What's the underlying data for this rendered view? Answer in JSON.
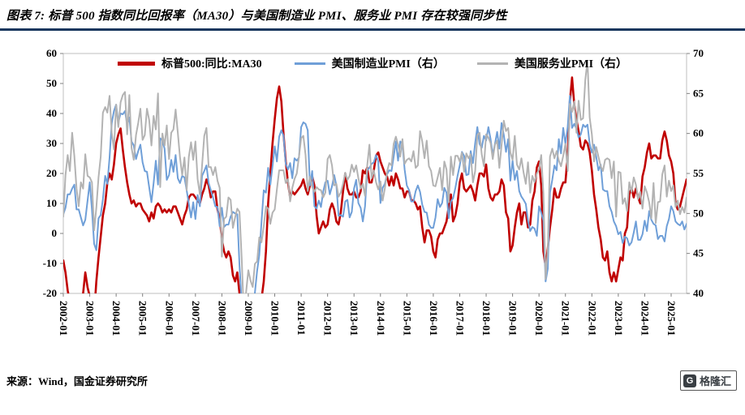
{
  "header": {
    "title": "图表 7: 标普 500 指数同比回报率（MA30）与美国制造业 PMI、服务业 PMI 存在较强同步性"
  },
  "footer": {
    "source": "来源：Wind，国金证券研究所",
    "logo_letter": "G",
    "logo_text": "格隆汇"
  },
  "chart_data": {
    "type": "line",
    "title": "标普 500 指数同比回报率（MA30）与美国制造业 PMI、服务业 PMI 存在较强同步性",
    "x_start": "2002-01",
    "x_frequency": "monthly",
    "grid": false,
    "legend_position": "top-center",
    "x_ticks": [
      "2002-01",
      "2003-01",
      "2004-01",
      "2005-01",
      "2006-01",
      "2007-01",
      "2008-01",
      "2009-01",
      "2010-01",
      "2011-01",
      "2012-01",
      "2013-01",
      "2014-01",
      "2015-01",
      "2016-01",
      "2017-01",
      "2018-01",
      "2019-01",
      "2020-01",
      "2021-01",
      "2022-01",
      "2023-01",
      "2024-01",
      "2025-01"
    ],
    "left_axis": {
      "min": -20,
      "max": 60,
      "step": 10,
      "ticks": [
        60,
        50,
        40,
        30,
        20,
        10,
        0,
        -10,
        -20
      ]
    },
    "right_axis": {
      "min": 40,
      "max": 70,
      "step": 5,
      "ticks": [
        70,
        65,
        60,
        55,
        50,
        45,
        40
      ]
    },
    "legend": [
      {
        "label": "标普500:同比:MA30",
        "color": "#c00000"
      },
      {
        "label": "美国制造业PMI（右）",
        "color": "#6f9fd8"
      },
      {
        "label": "美国服务业PMI（右）",
        "color": "#b3b3b3"
      }
    ],
    "series": [
      {
        "name": "标普500:同比:MA30",
        "axis": "left",
        "color": "#c00000",
        "width": 2.6,
        "values": [
          -9,
          -13,
          -19,
          -23,
          -26,
          -27,
          -25,
          -27,
          -24,
          -20,
          -13,
          -18,
          -21,
          -25,
          -27,
          -16,
          -8,
          -1,
          6,
          10,
          17,
          20,
          18,
          23,
          30,
          33,
          35,
          28,
          22,
          17,
          13,
          10,
          11,
          9,
          10,
          10,
          8,
          7,
          6,
          4,
          7,
          5,
          9,
          10,
          9,
          7,
          8,
          7,
          8,
          7,
          9,
          9,
          7,
          5,
          3,
          6,
          8,
          12,
          13,
          13,
          12,
          11,
          10,
          13,
          15,
          18,
          16,
          12,
          14,
          14,
          8,
          5,
          -2,
          -6,
          -8,
          -6,
          -8,
          -14,
          -16,
          -13,
          -20,
          -30,
          -36,
          -38,
          -38,
          -41,
          -40,
          -35,
          -32,
          -27,
          -22,
          -16,
          -6,
          10,
          20,
          30,
          38,
          45,
          49,
          44,
          33,
          24,
          17,
          12,
          14,
          13,
          14,
          15,
          16,
          18,
          15,
          13,
          16,
          19,
          16,
          6,
          0,
          2,
          4,
          2,
          3,
          8,
          10,
          8,
          4,
          3,
          7,
          14,
          20,
          15,
          13,
          13,
          14,
          12,
          12,
          14,
          21,
          20,
          22,
          17,
          17,
          21,
          26,
          27,
          24,
          22,
          20,
          19,
          16,
          19,
          16,
          20,
          18,
          15,
          15,
          12,
          14,
          14,
          11,
          11,
          10,
          8,
          9,
          2,
          -3,
          1,
          1,
          -1,
          -6,
          -8,
          -2,
          0,
          0,
          2,
          4,
          9,
          13,
          4,
          6,
          10,
          17,
          20,
          15,
          14,
          15,
          16,
          14,
          11,
          16,
          20,
          20,
          19,
          23,
          15,
          12,
          11,
          13,
          13,
          14,
          18,
          16,
          7,
          5,
          -6,
          -4,
          2,
          7,
          10,
          3,
          7,
          7,
          2,
          3,
          11,
          14,
          22,
          24,
          16,
          -6,
          -11,
          -5,
          2,
          8,
          15,
          12,
          12,
          15,
          17,
          17,
          26,
          44,
          52,
          43,
          38,
          34,
          29,
          28,
          31,
          30,
          27,
          21,
          13,
          8,
          2,
          -2,
          -8,
          -9,
          -6,
          -13,
          -16,
          -13,
          -16,
          -12,
          -8,
          -9,
          0,
          2,
          13,
          15,
          12,
          15,
          12,
          10,
          19,
          22,
          27,
          30,
          25,
          26,
          26,
          25,
          25,
          31,
          34,
          31,
          26,
          24,
          20,
          10,
          8,
          9,
          12,
          15,
          18
        ]
      },
      {
        "name": "美国制造业PMI（右）",
        "axis": "right",
        "color": "#6f9fd8",
        "width": 2,
        "values": [
          49.9,
          50.7,
          52.4,
          52.4,
          53.1,
          53.6,
          50.5,
          50.5,
          49.5,
          48.5,
          49.2,
          51.6,
          53.9,
          50.5,
          46.2,
          45.4,
          49.4,
          49.8,
          51.8,
          54.7,
          53.7,
          57.0,
          61.3,
          62.8,
          63.6,
          61.4,
          62.5,
          62.4,
          62.8,
          61.1,
          62.0,
          59.0,
          58.5,
          56.8,
          57.8,
          58.6,
          56.4,
          55.3,
          55.2,
          53.3,
          51.4,
          53.8,
          56.6,
          53.6,
          59.4,
          59.1,
          58.1,
          54.2,
          54.8,
          56.7,
          55.2,
          57.3,
          54.4,
          53.8,
          54.7,
          54.5,
          52.9,
          51.2,
          49.5,
          51.4,
          49.3,
          52.3,
          50.9,
          54.7,
          55.3,
          56.0,
          53.8,
          52.9,
          52.0,
          50.9,
          50.8,
          48.4,
          50.7,
          48.3,
          48.6,
          48.6,
          49.6,
          50.2,
          50.0,
          49.9,
          43.5,
          38.9,
          36.2,
          32.9,
          35.6,
          35.8,
          36.3,
          40.1,
          42.8,
          44.8,
          48.9,
          52.9,
          52.6,
          55.7,
          53.6,
          55.9,
          58.4,
          56.5,
          59.6,
          60.4,
          59.7,
          56.2,
          55.5,
          56.3,
          54.4,
          56.9,
          56.6,
          57.0,
          60.8,
          61.4,
          61.2,
          60.4,
          53.5,
          55.3,
          50.9,
          50.6,
          51.6,
          50.8,
          52.7,
          53.9,
          54.1,
          52.4,
          53.4,
          54.8,
          53.5,
          49.7,
          49.8,
          49.6,
          51.5,
          51.7,
          49.5,
          50.2,
          53.1,
          54.2,
          51.3,
          50.7,
          49.0,
          50.9,
          55.4,
          55.7,
          56.2,
          56.4,
          57.3,
          56.5,
          51.3,
          53.2,
          53.7,
          54.9,
          55.4,
          55.3,
          57.1,
          59.0,
          56.6,
          59.0,
          58.7,
          55.5,
          53.5,
          52.9,
          51.5,
          51.5,
          52.8,
          53.5,
          52.7,
          51.1,
          50.2,
          50.1,
          48.6,
          48.2,
          48.2,
          49.5,
          51.8,
          50.8,
          51.3,
          53.2,
          52.6,
          49.4,
          51.5,
          51.9,
          53.2,
          54.7,
          56.0,
          57.7,
          57.2,
          54.8,
          54.9,
          57.8,
          56.3,
          58.8,
          60.8,
          58.7,
          58.2,
          59.7,
          59.1,
          60.8,
          59.3,
          57.3,
          58.7,
          60.2,
          58.1,
          61.3,
          59.8,
          57.7,
          59.3,
          54.1,
          56.6,
          54.2,
          55.3,
          52.8,
          52.1,
          51.7,
          51.2,
          49.1,
          47.8,
          48.3,
          48.1,
          47.2,
          50.9,
          50.1,
          49.1,
          41.5,
          43.1,
          52.6,
          54.2,
          56.0,
          55.4,
          59.3,
          57.5,
          60.7,
          58.7,
          60.8,
          64.7,
          60.7,
          61.2,
          60.6,
          59.5,
          59.9,
          61.1,
          60.8,
          61.1,
          58.7,
          57.6,
          58.6,
          57.1,
          55.4,
          56.1,
          53.0,
          52.8,
          52.8,
          50.9,
          50.2,
          49.0,
          48.4,
          47.4,
          47.7,
          46.3,
          47.1,
          46.9,
          46.0,
          46.4,
          47.6,
          49.0,
          46.7,
          46.7,
          47.4,
          49.1,
          47.8,
          50.3,
          49.2,
          48.7,
          48.5,
          46.8,
          47.2,
          47.2,
          46.5,
          48.4,
          49.3,
          50.9,
          50.3,
          49.0,
          48.7,
          48.5,
          49.0,
          48.0,
          48.7
        ]
      },
      {
        "name": "美国服务业PMI（右）",
        "axis": "right",
        "color": "#b3b3b3",
        "width": 2,
        "values": [
          49.6,
          54.8,
          57.3,
          55.3,
          60.1,
          57.2,
          53.1,
          50.9,
          53.9,
          53.1,
          57.4,
          54.7,
          54.5,
          53.9,
          47.9,
          50.7,
          54.5,
          57.1,
          62.6,
          63.3,
          62.6,
          64.7,
          60.1,
          58.0,
          63.6,
          60.8,
          63.9,
          64.8,
          65.2,
          59.9,
          64.8,
          58.2,
          56.7,
          59.8,
          61.3,
          63.1,
          59.2,
          59.8,
          63.1,
          61.7,
          58.5,
          62.2,
          60.5,
          65.0,
          53.3,
          60.0,
          58.5,
          61.0,
          56.8,
          60.1,
          60.5,
          63.0,
          60.1,
          57.0,
          54.8,
          57.0,
          52.9,
          57.1,
          58.9,
          56.7,
          59.0,
          54.3,
          52.4,
          56.0,
          59.7,
          60.7,
          55.8,
          55.8,
          54.8,
          55.8,
          54.1,
          53.2,
          44.6,
          49.3,
          49.6,
          52.0,
          51.7,
          48.2,
          49.5,
          50.6,
          50.2,
          44.4,
          37.3,
          40.1,
          42.9,
          41.6,
          40.8,
          43.7,
          44.0,
          47.0,
          46.4,
          48.4,
          50.9,
          50.6,
          48.7,
          50.1,
          50.5,
          53.0,
          55.4,
          55.4,
          55.4,
          53.8,
          54.3,
          51.5,
          53.2,
          54.3,
          55.0,
          57.1,
          59.4,
          59.7,
          57.3,
          52.8,
          54.6,
          53.3,
          52.7,
          53.3,
          53.0,
          52.9,
          52.0,
          52.6,
          56.8,
          57.3,
          56.0,
          53.5,
          53.7,
          52.1,
          52.6,
          53.7,
          55.1,
          54.2,
          54.7,
          56.1,
          55.2,
          56.0,
          54.4,
          53.1,
          53.7,
          52.2,
          56.0,
          58.6,
          54.4,
          55.4,
          53.9,
          53.0,
          54.0,
          51.6,
          53.1,
          55.2,
          56.3,
          56.0,
          58.7,
          59.6,
          58.6,
          57.1,
          59.3,
          56.2,
          56.7,
          56.9,
          56.5,
          57.8,
          55.7,
          56.0,
          60.3,
          59.0,
          56.9,
          59.1,
          55.9,
          55.3,
          53.5,
          53.4,
          54.5,
          55.7,
          52.9,
          56.5,
          55.5,
          51.4,
          57.1,
          54.8,
          57.2,
          57.2,
          56.5,
          57.6,
          55.2,
          57.5,
          56.9,
          57.4,
          53.9,
          55.3,
          59.8,
          60.1,
          57.4,
          55.9,
          59.9,
          59.5,
          58.8,
          56.8,
          58.6,
          59.1,
          55.7,
          58.5,
          61.6,
          60.3,
          60.7,
          57.6,
          56.7,
          59.7,
          56.1,
          55.5,
          56.9,
          55.1,
          53.7,
          56.4,
          52.6,
          54.7,
          53.9,
          55.0,
          55.5,
          57.3,
          52.5,
          41.8,
          45.4,
          57.1,
          58.1,
          56.9,
          57.8,
          56.6,
          55.9,
          57.2,
          58.7,
          55.3,
          63.7,
          62.7,
          64.0,
          60.1,
          64.1,
          61.7,
          61.9,
          66.7,
          69.1,
          62.0,
          59.9,
          56.5,
          58.3,
          57.1,
          55.9,
          55.3,
          56.7,
          56.9,
          56.7,
          54.4,
          56.5,
          49.6,
          55.2,
          55.1,
          51.2,
          51.9,
          50.3,
          53.9,
          52.7,
          54.5,
          53.6,
          51.8,
          52.7,
          50.6,
          53.4,
          52.6,
          51.4,
          49.4,
          53.8,
          48.8,
          51.4,
          51.5,
          54.9,
          56.0,
          52.1,
          54.1,
          52.8,
          53.5,
          50.8,
          51.6,
          49.9,
          50.8,
          50.1,
          52.0
        ]
      }
    ]
  }
}
